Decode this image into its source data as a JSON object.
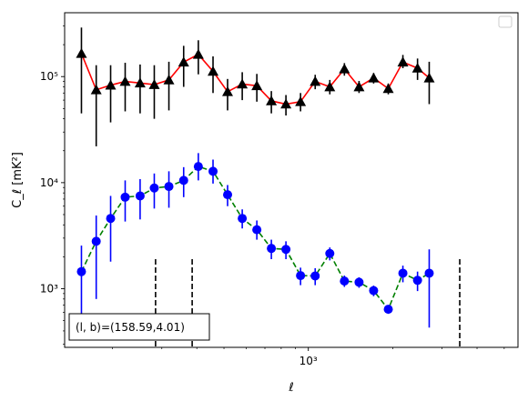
{
  "chart_data": {
    "type": "scatter",
    "xlabel": "ℓ",
    "ylabel": "C_ℓ  [mK²]",
    "xscale": "log",
    "yscale": "log",
    "xlim": [
      135,
      5600
    ],
    "ylim": [
      280,
      400000
    ],
    "xticks": [
      {
        "value": 1000,
        "label": "10³"
      }
    ],
    "yticks": [
      {
        "value": 1000,
        "label": "10³"
      },
      {
        "value": 10000,
        "label": "10⁴"
      },
      {
        "value": 100000,
        "label": "10⁵"
      }
    ],
    "grid": false,
    "legend": "upper-right-empty",
    "annotation": "(l, b)=(158.59,4.01)",
    "vlines": [
      285,
      385,
      3470
    ],
    "series": [
      {
        "marker": "triangle",
        "marker_color": "#000000",
        "line_color": "#ff0000",
        "line_style": "solid",
        "errbar_color": "#000000",
        "points": [
          {
            "x": 155,
            "y": 165000,
            "lo": 45000,
            "hi": 290000
          },
          {
            "x": 175,
            "y": 75000,
            "lo": 22000,
            "hi": 128000
          },
          {
            "x": 197,
            "y": 83000,
            "lo": 37000,
            "hi": 128000
          },
          {
            "x": 222,
            "y": 90000,
            "lo": 47000,
            "hi": 135000
          },
          {
            "x": 251,
            "y": 87000,
            "lo": 45000,
            "hi": 130000
          },
          {
            "x": 282,
            "y": 84000,
            "lo": 40000,
            "hi": 128000
          },
          {
            "x": 318,
            "y": 93000,
            "lo": 48000,
            "hi": 138000
          },
          {
            "x": 359,
            "y": 137000,
            "lo": 80000,
            "hi": 195000
          },
          {
            "x": 405,
            "y": 162000,
            "lo": 105000,
            "hi": 220000
          },
          {
            "x": 457,
            "y": 112000,
            "lo": 70000,
            "hi": 155000
          },
          {
            "x": 515,
            "y": 72000,
            "lo": 48000,
            "hi": 95000
          },
          {
            "x": 581,
            "y": 85000,
            "lo": 60000,
            "hi": 110000
          },
          {
            "x": 655,
            "y": 82000,
            "lo": 58000,
            "hi": 106000
          },
          {
            "x": 738,
            "y": 59000,
            "lo": 45000,
            "hi": 73000
          },
          {
            "x": 832,
            "y": 55000,
            "lo": 43000,
            "hi": 67000
          },
          {
            "x": 938,
            "y": 58000,
            "lo": 47000,
            "hi": 70000
          },
          {
            "x": 1058,
            "y": 90000,
            "lo": 76000,
            "hi": 104000
          },
          {
            "x": 1193,
            "y": 80000,
            "lo": 68000,
            "hi": 93000
          },
          {
            "x": 1345,
            "y": 118000,
            "lo": 102000,
            "hi": 134000
          },
          {
            "x": 1517,
            "y": 80000,
            "lo": 70000,
            "hi": 91000
          },
          {
            "x": 1710,
            "y": 97000,
            "lo": 86000,
            "hi": 108000
          },
          {
            "x": 1929,
            "y": 77000,
            "lo": 68000,
            "hi": 86000
          },
          {
            "x": 2175,
            "y": 137000,
            "lo": 120000,
            "hi": 160000
          },
          {
            "x": 2453,
            "y": 120000,
            "lo": 93000,
            "hi": 148000
          },
          {
            "x": 2700,
            "y": 97000,
            "lo": 55000,
            "hi": 138000
          }
        ]
      },
      {
        "marker": "circle",
        "marker_color": "#0000ff",
        "line_color": "#008000",
        "line_style": "dashed",
        "errbar_color": "#0000ff",
        "points": [
          {
            "x": 155,
            "y": 1450,
            "lo": 500,
            "hi": 2550
          },
          {
            "x": 175,
            "y": 2800,
            "lo": 800,
            "hi": 4900
          },
          {
            "x": 197,
            "y": 4600,
            "lo": 1800,
            "hi": 7500
          },
          {
            "x": 222,
            "y": 7300,
            "lo": 4300,
            "hi": 10500
          },
          {
            "x": 251,
            "y": 7500,
            "lo": 4500,
            "hi": 10800
          },
          {
            "x": 282,
            "y": 8900,
            "lo": 5700,
            "hi": 12200
          },
          {
            "x": 318,
            "y": 9200,
            "lo": 5800,
            "hi": 12800
          },
          {
            "x": 359,
            "y": 10500,
            "lo": 7300,
            "hi": 14000
          },
          {
            "x": 405,
            "y": 14200,
            "lo": 10500,
            "hi": 19000
          },
          {
            "x": 457,
            "y": 12800,
            "lo": 9800,
            "hi": 16500
          },
          {
            "x": 515,
            "y": 7700,
            "lo": 6000,
            "hi": 9500
          },
          {
            "x": 581,
            "y": 4600,
            "lo": 3700,
            "hi": 5600
          },
          {
            "x": 655,
            "y": 3600,
            "lo": 2900,
            "hi": 4400
          },
          {
            "x": 738,
            "y": 2400,
            "lo": 1900,
            "hi": 2900
          },
          {
            "x": 832,
            "y": 2350,
            "lo": 1900,
            "hi": 2800
          },
          {
            "x": 938,
            "y": 1330,
            "lo": 1080,
            "hi": 1580
          },
          {
            "x": 1058,
            "y": 1320,
            "lo": 1080,
            "hi": 1560
          },
          {
            "x": 1193,
            "y": 2150,
            "lo": 1850,
            "hi": 2450
          },
          {
            "x": 1345,
            "y": 1180,
            "lo": 1040,
            "hi": 1330
          },
          {
            "x": 1517,
            "y": 1150,
            "lo": 1020,
            "hi": 1280
          },
          {
            "x": 1710,
            "y": 960,
            "lo": 850,
            "hi": 1070
          },
          {
            "x": 1929,
            "y": 640,
            "lo": 580,
            "hi": 700
          },
          {
            "x": 2175,
            "y": 1400,
            "lo": 1150,
            "hi": 1650
          },
          {
            "x": 2453,
            "y": 1200,
            "lo": 950,
            "hi": 1450
          },
          {
            "x": 2700,
            "y": 1400,
            "lo": 430,
            "hi": 2350
          }
        ]
      }
    ]
  }
}
